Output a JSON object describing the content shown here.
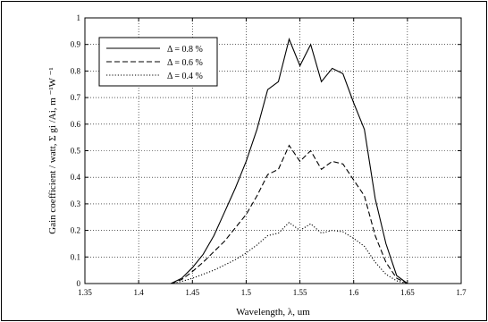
{
  "chart_data": {
    "type": "line",
    "title": "",
    "xlabel": "Wavelength, λ, um",
    "ylabel": "Gain coefficient / watt, Σ gi /Ai, m ⁻¹W ⁻¹",
    "xlim": [
      1.35,
      1.7
    ],
    "ylim": [
      0,
      1
    ],
    "xticks": [
      "1.35",
      "1.4",
      "1.45",
      "1.5",
      "1.55",
      "1.6",
      "1.65",
      "1.7"
    ],
    "yticks": [
      "0",
      "0.1",
      "0.2",
      "0.3",
      "0.4",
      "0.5",
      "0.6",
      "0.7",
      "0.8",
      "0.9",
      "1"
    ],
    "grid": true,
    "legend_position": "top-left",
    "series": [
      {
        "name": "Δ = 0.8 %",
        "style": "solid",
        "x": [
          1.43,
          1.44,
          1.45,
          1.46,
          1.47,
          1.48,
          1.49,
          1.5,
          1.51,
          1.52,
          1.53,
          1.54,
          1.55,
          1.56,
          1.57,
          1.58,
          1.59,
          1.6,
          1.61,
          1.62,
          1.63,
          1.64,
          1.65
        ],
        "values": [
          0,
          0.02,
          0.06,
          0.11,
          0.18,
          0.27,
          0.36,
          0.46,
          0.58,
          0.73,
          0.76,
          0.92,
          0.82,
          0.9,
          0.76,
          0.81,
          0.79,
          0.68,
          0.58,
          0.32,
          0.15,
          0.03,
          0
        ]
      },
      {
        "name": "Δ = 0.6 %",
        "style": "dashed",
        "x": [
          1.43,
          1.44,
          1.45,
          1.46,
          1.47,
          1.48,
          1.49,
          1.5,
          1.51,
          1.52,
          1.53,
          1.54,
          1.55,
          1.56,
          1.57,
          1.58,
          1.59,
          1.6,
          1.61,
          1.62,
          1.63,
          1.64,
          1.65
        ],
        "values": [
          0,
          0.015,
          0.045,
          0.08,
          0.12,
          0.16,
          0.21,
          0.26,
          0.33,
          0.41,
          0.43,
          0.52,
          0.46,
          0.5,
          0.43,
          0.46,
          0.45,
          0.39,
          0.33,
          0.18,
          0.08,
          0.02,
          0
        ]
      },
      {
        "name": "Δ = 0.4 %",
        "style": "dotted",
        "x": [
          1.43,
          1.44,
          1.45,
          1.46,
          1.47,
          1.48,
          1.49,
          1.5,
          1.51,
          1.52,
          1.53,
          1.54,
          1.55,
          1.56,
          1.57,
          1.58,
          1.59,
          1.6,
          1.61,
          1.62,
          1.63,
          1.64,
          1.65
        ],
        "values": [
          0,
          0.008,
          0.02,
          0.035,
          0.05,
          0.07,
          0.09,
          0.115,
          0.145,
          0.18,
          0.19,
          0.23,
          0.2,
          0.225,
          0.19,
          0.2,
          0.195,
          0.17,
          0.14,
          0.08,
          0.035,
          0.01,
          0
        ]
      }
    ]
  }
}
